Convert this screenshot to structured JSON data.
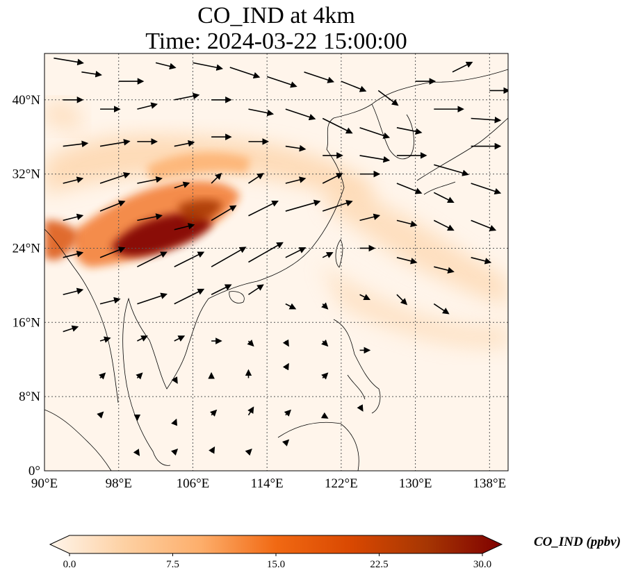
{
  "title": {
    "line1": "CO_IND at 4km",
    "line2": "Time: 2024-03-22 15:00:00"
  },
  "map": {
    "variable": "CO_IND",
    "lon_range": [
      90,
      140
    ],
    "lat_range": [
      0,
      45
    ],
    "lon_ticks": [
      90,
      98,
      106,
      114,
      122,
      130,
      138
    ],
    "lat_ticks": [
      0,
      8,
      16,
      24,
      32,
      40
    ],
    "lon_tick_labels": [
      "90°E",
      "98°E",
      "106°E",
      "114°E",
      "122°E",
      "130°E",
      "138°E"
    ],
    "lat_tick_labels": [
      "0°",
      "8°N",
      "16°N",
      "24°N",
      "32°N",
      "40°N"
    ],
    "gridlines": true,
    "plume_color": "#7f0000",
    "background_color": "#fff5eb"
  },
  "colorbar": {
    "label": "CO_IND (ppbv)",
    "min": 0,
    "max": 30,
    "ticks": [
      0.0,
      7.5,
      15.0,
      22.5,
      30.0
    ],
    "tick_labels": [
      "0.0",
      "7.5",
      "15.0",
      "22.5",
      "30.0"
    ],
    "extend": "both",
    "colormap": [
      "#fff5eb",
      "#fdd0a2",
      "#fdae6b",
      "#f16913",
      "#d94801",
      "#a63603",
      "#7f0000"
    ]
  },
  "chart_data": {
    "type": "heatmap",
    "title": "CO_IND at 4km\nTime: 2024-03-22 15:00:00",
    "xlabel": "",
    "ylabel": "",
    "xlim": [
      90,
      140
    ],
    "ylim": [
      0,
      45
    ],
    "units": "ppbv",
    "concentration_features": [
      {
        "lon": 103,
        "lat": 25.5,
        "value": 30
      },
      {
        "lon": 101,
        "lat": 24.5,
        "value": 28
      },
      {
        "lon": 106,
        "lat": 27,
        "value": 22
      },
      {
        "lon": 108,
        "lat": 28.5,
        "value": 18
      },
      {
        "lon": 91,
        "lat": 26,
        "value": 18
      },
      {
        "lon": 95,
        "lat": 23.5,
        "value": 15
      },
      {
        "lon": 104,
        "lat": 31,
        "value": 13
      },
      {
        "lon": 112,
        "lat": 33,
        "value": 10
      },
      {
        "lon": 118,
        "lat": 32,
        "value": 7
      },
      {
        "lon": 126,
        "lat": 28,
        "value": 6
      },
      {
        "lon": 134,
        "lat": 22,
        "value": 6
      },
      {
        "lon": 128,
        "lat": 17,
        "value": 4
      },
      {
        "lon": 92,
        "lat": 38,
        "value": 4
      },
      {
        "lon": 110,
        "lat": 18,
        "value": 4
      }
    ],
    "wind_vectors": [
      {
        "lon": 91,
        "lat": 44.5,
        "u": 3,
        "v": -0.5
      },
      {
        "lon": 94,
        "lat": 43,
        "u": 2,
        "v": -0.3
      },
      {
        "lon": 98,
        "lat": 42,
        "u": 2.5,
        "v": 0
      },
      {
        "lon": 102,
        "lat": 44,
        "u": 2,
        "v": -0.5
      },
      {
        "lon": 106,
        "lat": 44,
        "u": 3,
        "v": -0.6
      },
      {
        "lon": 110,
        "lat": 43.5,
        "u": 3,
        "v": -1
      },
      {
        "lon": 114,
        "lat": 42.5,
        "u": 3,
        "v": -1
      },
      {
        "lon": 118,
        "lat": 43,
        "u": 3,
        "v": -1
      },
      {
        "lon": 122,
        "lat": 42,
        "u": 2.5,
        "v": -1
      },
      {
        "lon": 126,
        "lat": 41,
        "u": 2,
        "v": -1.5
      },
      {
        "lon": 130,
        "lat": 42,
        "u": 2,
        "v": 0
      },
      {
        "lon": 134,
        "lat": 43,
        "u": 2,
        "v": 1
      },
      {
        "lon": 138,
        "lat": 41,
        "u": 2,
        "v": 0
      },
      {
        "lon": 92,
        "lat": 40,
        "u": 2,
        "v": 0
      },
      {
        "lon": 96,
        "lat": 39,
        "u": 2,
        "v": 0
      },
      {
        "lon": 100,
        "lat": 39,
        "u": 2,
        "v": 0.5
      },
      {
        "lon": 104,
        "lat": 40,
        "u": 2.5,
        "v": 0.5
      },
      {
        "lon": 108,
        "lat": 40,
        "u": 2,
        "v": 0
      },
      {
        "lon": 112,
        "lat": 39,
        "u": 2.5,
        "v": -0.5
      },
      {
        "lon": 116,
        "lat": 39,
        "u": 3,
        "v": -1
      },
      {
        "lon": 120,
        "lat": 38,
        "u": 3,
        "v": -1.5
      },
      {
        "lon": 124,
        "lat": 37,
        "u": 3,
        "v": -1
      },
      {
        "lon": 128,
        "lat": 37,
        "u": 2.5,
        "v": -0.5
      },
      {
        "lon": 132,
        "lat": 39,
        "u": 3,
        "v": 0
      },
      {
        "lon": 136,
        "lat": 38,
        "u": 3,
        "v": -0.2
      },
      {
        "lon": 92,
        "lat": 35,
        "u": 2.5,
        "v": 0.3
      },
      {
        "lon": 96,
        "lat": 35,
        "u": 3,
        "v": 0.5
      },
      {
        "lon": 100,
        "lat": 35.5,
        "u": 2,
        "v": 0
      },
      {
        "lon": 104,
        "lat": 35,
        "u": 2,
        "v": 0.4
      },
      {
        "lon": 108,
        "lat": 36,
        "u": 2,
        "v": 0
      },
      {
        "lon": 112,
        "lat": 35.5,
        "u": 2,
        "v": 0
      },
      {
        "lon": 116,
        "lat": 35,
        "u": 2,
        "v": -0.3
      },
      {
        "lon": 120,
        "lat": 34,
        "u": 2,
        "v": 0
      },
      {
        "lon": 124,
        "lat": 34,
        "u": 3,
        "v": -0.5
      },
      {
        "lon": 128,
        "lat": 34,
        "u": 3,
        "v": 0
      },
      {
        "lon": 132,
        "lat": 33,
        "u": 3.5,
        "v": -1
      },
      {
        "lon": 136,
        "lat": 35,
        "u": 3,
        "v": 0
      },
      {
        "lon": 92,
        "lat": 31,
        "u": 2,
        "v": 0.5
      },
      {
        "lon": 96,
        "lat": 31,
        "u": 3,
        "v": 1
      },
      {
        "lon": 100,
        "lat": 31,
        "u": 2.5,
        "v": 0.5
      },
      {
        "lon": 104,
        "lat": 30.5,
        "u": 1.5,
        "v": 0.5
      },
      {
        "lon": 108,
        "lat": 31,
        "u": 1,
        "v": 1
      },
      {
        "lon": 112,
        "lat": 31,
        "u": 1.5,
        "v": 1
      },
      {
        "lon": 116,
        "lat": 31,
        "u": 2,
        "v": 0.5
      },
      {
        "lon": 120,
        "lat": 31,
        "u": 2,
        "v": 1
      },
      {
        "lon": 124,
        "lat": 32,
        "u": 2,
        "v": 0
      },
      {
        "lon": 128,
        "lat": 31,
        "u": 2.5,
        "v": -1
      },
      {
        "lon": 132,
        "lat": 30,
        "u": 2,
        "v": -1
      },
      {
        "lon": 136,
        "lat": 31,
        "u": 3,
        "v": -1
      },
      {
        "lon": 92,
        "lat": 27,
        "u": 2,
        "v": 0.5
      },
      {
        "lon": 96,
        "lat": 28,
        "u": 2.5,
        "v": 1
      },
      {
        "lon": 100,
        "lat": 27,
        "u": 2.5,
        "v": 0.5
      },
      {
        "lon": 104,
        "lat": 26,
        "u": 2,
        "v": 0.5
      },
      {
        "lon": 108,
        "lat": 27,
        "u": 2.5,
        "v": 1.5
      },
      {
        "lon": 112,
        "lat": 27.5,
        "u": 3,
        "v": 1.5
      },
      {
        "lon": 116,
        "lat": 28,
        "u": 3.5,
        "v": 1
      },
      {
        "lon": 120,
        "lat": 28,
        "u": 3,
        "v": 1
      },
      {
        "lon": 124,
        "lat": 27,
        "u": 2,
        "v": 0.5
      },
      {
        "lon": 128,
        "lat": 27,
        "u": 2,
        "v": -0.5
      },
      {
        "lon": 132,
        "lat": 27,
        "u": 2,
        "v": -1
      },
      {
        "lon": 136,
        "lat": 27,
        "u": 2.5,
        "v": -1
      },
      {
        "lon": 92,
        "lat": 23,
        "u": 2,
        "v": 0.5
      },
      {
        "lon": 96,
        "lat": 23,
        "u": 2.5,
        "v": 1
      },
      {
        "lon": 100,
        "lat": 22,
        "u": 3,
        "v": 1.5
      },
      {
        "lon": 104,
        "lat": 22,
        "u": 3,
        "v": 1.5
      },
      {
        "lon": 108,
        "lat": 22,
        "u": 3.5,
        "v": 2
      },
      {
        "lon": 112,
        "lat": 22.5,
        "u": 3.5,
        "v": 2
      },
      {
        "lon": 116,
        "lat": 23,
        "u": 2,
        "v": 1
      },
      {
        "lon": 120,
        "lat": 23,
        "u": 1,
        "v": 0.5
      },
      {
        "lon": 124,
        "lat": 24,
        "u": 1.5,
        "v": 0
      },
      {
        "lon": 128,
        "lat": 23,
        "u": 2,
        "v": -0.5
      },
      {
        "lon": 132,
        "lat": 22,
        "u": 2,
        "v": -0.5
      },
      {
        "lon": 136,
        "lat": 23,
        "u": 2,
        "v": -0.5
      },
      {
        "lon": 92,
        "lat": 19,
        "u": 2,
        "v": 0.5
      },
      {
        "lon": 96,
        "lat": 18,
        "u": 2,
        "v": 0.5
      },
      {
        "lon": 100,
        "lat": 18,
        "u": 3,
        "v": 1
      },
      {
        "lon": 104,
        "lat": 18,
        "u": 3,
        "v": 1.5
      },
      {
        "lon": 108,
        "lat": 19,
        "u": 2,
        "v": 1
      },
      {
        "lon": 112,
        "lat": 19,
        "u": 1.5,
        "v": 1
      },
      {
        "lon": 116,
        "lat": 18,
        "u": 1,
        "v": -0.5
      },
      {
        "lon": 120,
        "lat": 18,
        "u": 0.5,
        "v": -0.5
      },
      {
        "lon": 124,
        "lat": 19,
        "u": 1,
        "v": -0.5
      },
      {
        "lon": 128,
        "lat": 19,
        "u": 1,
        "v": -1
      },
      {
        "lon": 132,
        "lat": 18,
        "u": 1.5,
        "v": -1
      },
      {
        "lon": 92,
        "lat": 15,
        "u": 1.5,
        "v": 0.5
      },
      {
        "lon": 96,
        "lat": 14,
        "u": 1,
        "v": 0.3
      },
      {
        "lon": 100,
        "lat": 14,
        "u": 1,
        "v": 0.5
      },
      {
        "lon": 104,
        "lat": 14,
        "u": 1,
        "v": 0.5
      },
      {
        "lon": 108,
        "lat": 14,
        "u": 1,
        "v": 0
      },
      {
        "lon": 112,
        "lat": 14,
        "u": 0.5,
        "v": -0.5
      },
      {
        "lon": 116,
        "lat": 14,
        "u": 0.3,
        "v": -0.5
      },
      {
        "lon": 120,
        "lat": 14,
        "u": 0.5,
        "v": -0.5
      },
      {
        "lon": 124,
        "lat": 13,
        "u": 1,
        "v": 0
      },
      {
        "lon": 96,
        "lat": 10,
        "u": 0.5,
        "v": 0.5
      },
      {
        "lon": 100,
        "lat": 10,
        "u": 0.5,
        "v": 0.5
      },
      {
        "lon": 104,
        "lat": 10,
        "u": 0.3,
        "v": -0.5
      },
      {
        "lon": 108,
        "lat": 10,
        "u": 0,
        "v": 0.5
      },
      {
        "lon": 112,
        "lat": 10,
        "u": 0,
        "v": 0.8
      },
      {
        "lon": 116,
        "lat": 11,
        "u": 0.3,
        "v": 0.5
      },
      {
        "lon": 120,
        "lat": 10,
        "u": 0.5,
        "v": 0.5
      },
      {
        "lon": 96,
        "lat": 6,
        "u": 0.3,
        "v": 0.3
      },
      {
        "lon": 100,
        "lat": 6,
        "u": 0,
        "v": -0.5
      },
      {
        "lon": 104,
        "lat": 5,
        "u": 0.2,
        "v": 0.5
      },
      {
        "lon": 108,
        "lat": 6,
        "u": 0.5,
        "v": 0.5
      },
      {
        "lon": 112,
        "lat": 6,
        "u": 0.5,
        "v": 0.8
      },
      {
        "lon": 116,
        "lat": 6,
        "u": 0.5,
        "v": 0.5
      },
      {
        "lon": 120,
        "lat": 6,
        "u": 0.5,
        "v": -0.3
      },
      {
        "lon": 124,
        "lat": 7,
        "u": 0.3,
        "v": -0.5
      },
      {
        "lon": 100,
        "lat": 2,
        "u": 0.2,
        "v": -0.3
      },
      {
        "lon": 104,
        "lat": 2,
        "u": 0.3,
        "v": 0.3
      },
      {
        "lon": 108,
        "lat": 2,
        "u": 0.3,
        "v": 0.5
      },
      {
        "lon": 112,
        "lat": 2,
        "u": 0.3,
        "v": 0.3
      },
      {
        "lon": 116,
        "lat": 3,
        "u": 0.3,
        "v": 0.3
      }
    ]
  }
}
